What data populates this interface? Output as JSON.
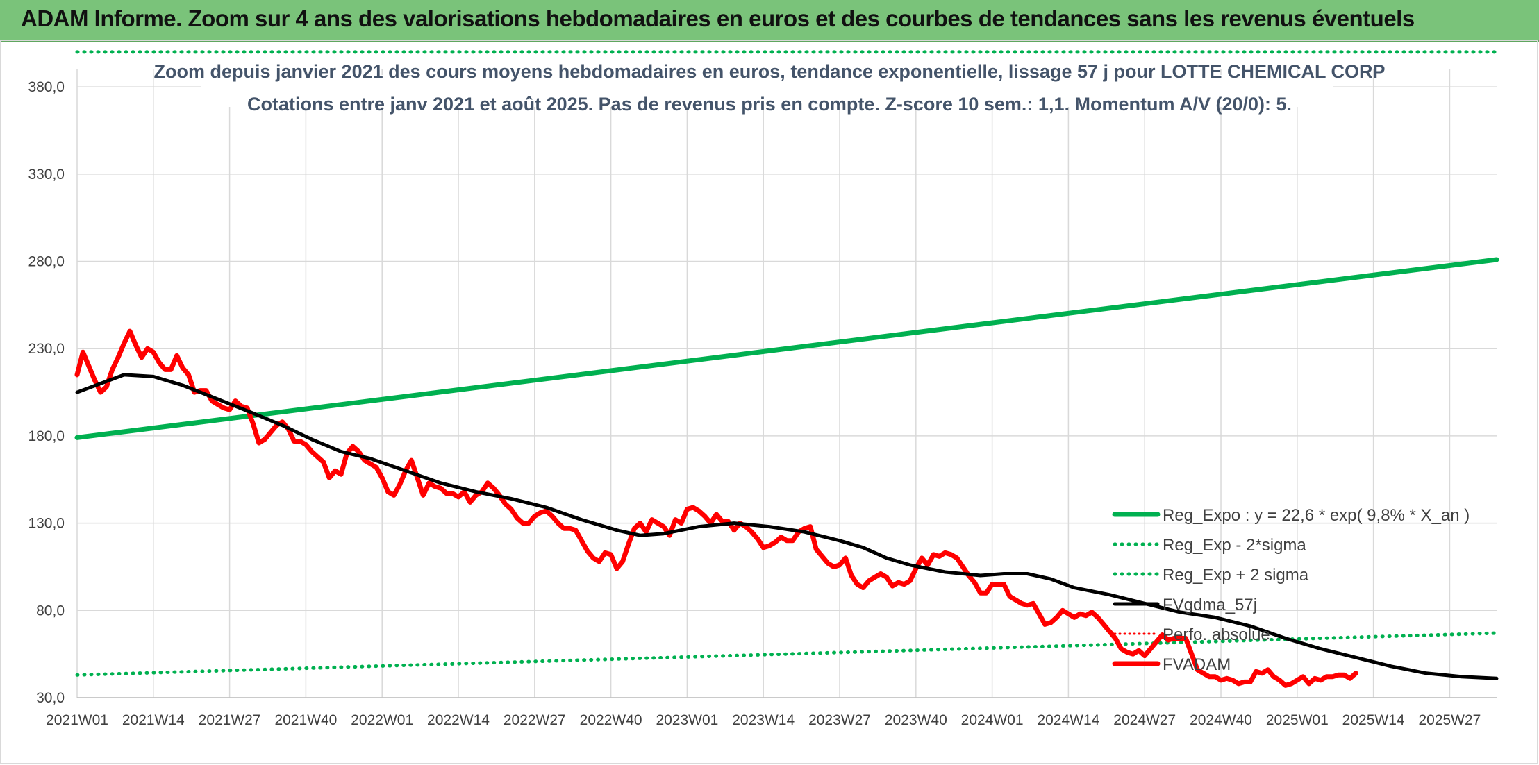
{
  "banner": {
    "title": "ADAM Informe. Zoom sur 4 ans des valorisations hebdomadaires en euros et des courbes de tendances sans les revenus éventuels"
  },
  "colors": {
    "banner": "#7ac37a",
    "reg_expo": "#00b050",
    "sigma_bands": "#00b050",
    "fvgdma": "#000000",
    "perfo": "#ff0000",
    "fvadam": "#ff0000",
    "title_text": "#44546a"
  },
  "chart_data": {
    "type": "line",
    "title": "Zoom depuis janvier 2021 des cours moyens hebdomadaires en euros, tendance exponentielle, lissage 57 j pour LOTTE CHEMICAL CORP",
    "subtitle": "Cotations entre janv 2021 et août 2025. Pas de revenus pris en compte. Z-score 10 sem.: 1,1. Momentum A/V (20/0): 5.",
    "xlabel": "",
    "ylabel": "",
    "ylim": [
      30,
      390
    ],
    "yticks": [
      "30,0",
      "80,0",
      "130,0",
      "180,0",
      "230,0",
      "280,0",
      "330,0",
      "380,0"
    ],
    "xticks": [
      "2021W01",
      "2021W14",
      "2021W27",
      "2021W40",
      "2022W01",
      "2022W14",
      "2022W27",
      "2022W40",
      "2023W01",
      "2023W14",
      "2023W27",
      "2023W40",
      "2024W01",
      "2024W14",
      "2024W27",
      "2024W40",
      "2025W01",
      "2025W14",
      "2025W27"
    ],
    "x_range_weeks": [
      0,
      242
    ],
    "grid": true,
    "legend_position": "bottom-right",
    "series": [
      {
        "name": "Reg_Expo : y = 22,6 * exp( 9,8% *  X_an )",
        "style": "solid-thick",
        "points": [
          [
            0,
            179
          ],
          [
            242,
            281
          ]
        ]
      },
      {
        "name": "Reg_Exp - 2*sigma",
        "style": "dotted",
        "points": [
          [
            0,
            43
          ],
          [
            242,
            67
          ]
        ]
      },
      {
        "name": "Reg_Exp + 2 sigma",
        "style": "dotted",
        "points": [
          [
            0,
            400
          ],
          [
            242,
            400
          ]
        ]
      },
      {
        "name": "FVgdma_57j",
        "style": "solid",
        "points": [
          [
            0,
            205
          ],
          [
            4,
            210
          ],
          [
            8,
            215
          ],
          [
            13,
            214
          ],
          [
            18,
            209
          ],
          [
            24,
            201
          ],
          [
            30,
            193
          ],
          [
            35,
            186
          ],
          [
            40,
            178
          ],
          [
            45,
            171
          ],
          [
            50,
            167
          ],
          [
            56,
            160
          ],
          [
            62,
            153
          ],
          [
            68,
            148
          ],
          [
            74,
            144
          ],
          [
            80,
            139
          ],
          [
            86,
            132
          ],
          [
            92,
            126
          ],
          [
            96,
            123
          ],
          [
            100,
            124
          ],
          [
            106,
            128
          ],
          [
            112,
            130
          ],
          [
            118,
            128
          ],
          [
            124,
            125
          ],
          [
            130,
            120
          ],
          [
            134,
            116
          ],
          [
            138,
            110
          ],
          [
            142,
            106
          ],
          [
            148,
            102
          ],
          [
            154,
            100
          ],
          [
            158,
            101
          ],
          [
            162,
            101
          ],
          [
            166,
            98
          ],
          [
            170,
            93
          ],
          [
            176,
            89
          ],
          [
            182,
            84
          ],
          [
            188,
            79
          ],
          [
            194,
            76
          ],
          [
            200,
            71
          ],
          [
            206,
            64
          ],
          [
            212,
            58
          ],
          [
            218,
            53
          ],
          [
            224,
            48
          ],
          [
            230,
            44
          ],
          [
            236,
            42
          ],
          [
            242,
            41
          ]
        ]
      },
      {
        "name": "Perfo. absolue",
        "style": "dotted-thin",
        "points": []
      },
      {
        "name": "FVADAM",
        "style": "solid-thick",
        "points": [
          [
            0,
            215
          ],
          [
            1,
            228
          ],
          [
            2,
            220
          ],
          [
            3,
            212
          ],
          [
            4,
            205
          ],
          [
            5,
            208
          ],
          [
            6,
            218
          ],
          [
            7,
            225
          ],
          [
            8,
            233
          ],
          [
            9,
            240
          ],
          [
            10,
            232
          ],
          [
            11,
            225
          ],
          [
            12,
            230
          ],
          [
            13,
            228
          ],
          [
            14,
            222
          ],
          [
            15,
            218
          ],
          [
            16,
            218
          ],
          [
            17,
            226
          ],
          [
            18,
            219
          ],
          [
            19,
            215
          ],
          [
            20,
            205
          ],
          [
            21,
            206
          ],
          [
            22,
            206
          ],
          [
            23,
            200
          ],
          [
            24,
            198
          ],
          [
            25,
            196
          ],
          [
            26,
            195
          ],
          [
            27,
            200
          ],
          [
            28,
            197
          ],
          [
            29,
            196
          ],
          [
            30,
            187
          ],
          [
            31,
            176
          ],
          [
            32,
            178
          ],
          [
            33,
            182
          ],
          [
            34,
            186
          ],
          [
            35,
            188
          ],
          [
            36,
            184
          ],
          [
            37,
            177
          ],
          [
            38,
            177
          ],
          [
            39,
            175
          ],
          [
            40,
            171
          ],
          [
            41,
            168
          ],
          [
            42,
            165
          ],
          [
            43,
            156
          ],
          [
            44,
            160
          ],
          [
            45,
            158
          ],
          [
            46,
            170
          ],
          [
            47,
            174
          ],
          [
            48,
            171
          ],
          [
            49,
            166
          ],
          [
            50,
            164
          ],
          [
            51,
            162
          ],
          [
            52,
            156
          ],
          [
            53,
            148
          ],
          [
            54,
            146
          ],
          [
            55,
            152
          ],
          [
            56,
            160
          ],
          [
            57,
            166
          ],
          [
            58,
            156
          ],
          [
            59,
            146
          ],
          [
            60,
            153
          ],
          [
            61,
            151
          ],
          [
            62,
            150
          ],
          [
            63,
            147
          ],
          [
            64,
            147
          ],
          [
            65,
            145
          ],
          [
            66,
            148
          ],
          [
            67,
            142
          ],
          [
            68,
            146
          ],
          [
            69,
            148
          ],
          [
            70,
            153
          ],
          [
            71,
            150
          ],
          [
            72,
            146
          ],
          [
            73,
            141
          ],
          [
            74,
            138
          ],
          [
            75,
            133
          ],
          [
            76,
            130
          ],
          [
            77,
            130
          ],
          [
            78,
            134
          ],
          [
            79,
            136
          ],
          [
            80,
            137
          ],
          [
            81,
            134
          ],
          [
            82,
            130
          ],
          [
            83,
            127
          ],
          [
            84,
            127
          ],
          [
            85,
            126
          ],
          [
            86,
            120
          ],
          [
            87,
            114
          ],
          [
            88,
            110
          ],
          [
            89,
            108
          ],
          [
            90,
            113
          ],
          [
            91,
            112
          ],
          [
            92,
            104
          ],
          [
            93,
            108
          ],
          [
            94,
            118
          ],
          [
            95,
            127
          ],
          [
            96,
            130
          ],
          [
            97,
            125
          ],
          [
            98,
            132
          ],
          [
            99,
            130
          ],
          [
            100,
            128
          ],
          [
            101,
            123
          ],
          [
            102,
            132
          ],
          [
            103,
            130
          ],
          [
            104,
            138
          ],
          [
            105,
            139
          ],
          [
            106,
            137
          ],
          [
            107,
            134
          ],
          [
            108,
            130
          ],
          [
            109,
            135
          ],
          [
            110,
            131
          ],
          [
            111,
            131
          ],
          [
            112,
            126
          ],
          [
            113,
            130
          ],
          [
            114,
            128
          ],
          [
            115,
            125
          ],
          [
            116,
            121
          ],
          [
            117,
            116
          ],
          [
            118,
            117
          ],
          [
            119,
            119
          ],
          [
            120,
            122
          ],
          [
            121,
            120
          ],
          [
            122,
            120
          ],
          [
            123,
            125
          ],
          [
            124,
            127
          ],
          [
            125,
            128
          ],
          [
            126,
            115
          ],
          [
            127,
            111
          ],
          [
            128,
            107
          ],
          [
            129,
            105
          ],
          [
            130,
            106
          ],
          [
            131,
            110
          ],
          [
            132,
            100
          ],
          [
            133,
            95
          ],
          [
            134,
            93
          ],
          [
            135,
            97
          ],
          [
            136,
            99
          ],
          [
            137,
            101
          ],
          [
            138,
            99
          ],
          [
            139,
            94
          ],
          [
            140,
            96
          ],
          [
            141,
            95
          ],
          [
            142,
            97
          ],
          [
            143,
            104
          ],
          [
            144,
            110
          ],
          [
            145,
            106
          ],
          [
            146,
            112
          ],
          [
            147,
            111
          ],
          [
            148,
            113
          ],
          [
            149,
            112
          ],
          [
            150,
            110
          ],
          [
            151,
            105
          ],
          [
            152,
            100
          ],
          [
            153,
            96
          ],
          [
            154,
            90
          ],
          [
            155,
            90
          ],
          [
            156,
            95
          ],
          [
            157,
            95
          ],
          [
            158,
            95
          ],
          [
            159,
            88
          ],
          [
            160,
            86
          ],
          [
            161,
            84
          ],
          [
            162,
            83
          ],
          [
            163,
            84
          ],
          [
            164,
            78
          ],
          [
            165,
            72
          ],
          [
            166,
            73
          ],
          [
            167,
            76
          ],
          [
            168,
            80
          ],
          [
            169,
            78
          ],
          [
            170,
            76
          ],
          [
            171,
            78
          ],
          [
            172,
            77
          ],
          [
            173,
            79
          ],
          [
            174,
            76
          ],
          [
            175,
            72
          ],
          [
            176,
            68
          ],
          [
            177,
            64
          ],
          [
            178,
            58
          ],
          [
            179,
            56
          ],
          [
            180,
            55
          ],
          [
            181,
            57
          ],
          [
            182,
            54
          ],
          [
            183,
            58
          ],
          [
            184,
            62
          ],
          [
            185,
            66
          ],
          [
            186,
            63
          ],
          [
            187,
            64
          ],
          [
            188,
            64
          ],
          [
            189,
            64
          ],
          [
            190,
            55
          ],
          [
            191,
            46
          ],
          [
            192,
            44
          ],
          [
            193,
            42
          ],
          [
            194,
            42
          ],
          [
            195,
            40
          ],
          [
            196,
            41
          ],
          [
            197,
            40
          ],
          [
            198,
            38
          ],
          [
            199,
            39
          ],
          [
            200,
            39
          ],
          [
            201,
            45
          ],
          [
            202,
            44
          ],
          [
            203,
            46
          ],
          [
            204,
            42
          ],
          [
            205,
            40
          ],
          [
            206,
            37
          ],
          [
            207,
            38
          ],
          [
            208,
            40
          ],
          [
            209,
            42
          ],
          [
            210,
            38
          ],
          [
            211,
            41
          ],
          [
            212,
            40
          ],
          [
            213,
            42
          ],
          [
            214,
            42
          ],
          [
            215,
            43
          ],
          [
            216,
            43
          ],
          [
            217,
            41
          ],
          [
            218,
            44
          ]
        ]
      }
    ]
  }
}
